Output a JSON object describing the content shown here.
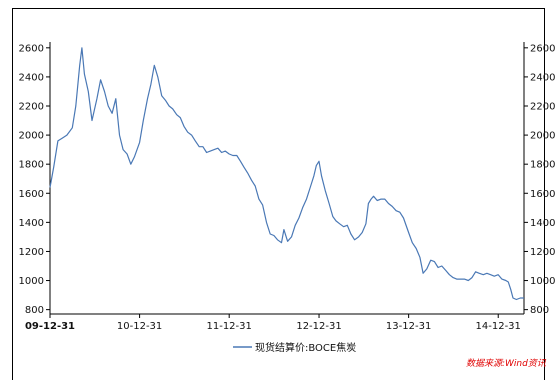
{
  "chart_data": {
    "type": "line",
    "series": [
      {
        "name": "现货结算价:BOCE焦炭",
        "color": "#4a78b5",
        "points": [
          [
            "2009-12-31",
            1640
          ],
          [
            "2010-01-15",
            1780
          ],
          [
            "2010-02-01",
            1960
          ],
          [
            "2010-02-20",
            1980
          ],
          [
            "2010-03-10",
            2000
          ],
          [
            "2010-04-01",
            2050
          ],
          [
            "2010-04-15",
            2200
          ],
          [
            "2010-05-01",
            2480
          ],
          [
            "2010-05-10",
            2600
          ],
          [
            "2010-05-20",
            2420
          ],
          [
            "2010-06-05",
            2300
          ],
          [
            "2010-06-20",
            2100
          ],
          [
            "2010-07-10",
            2250
          ],
          [
            "2010-07-25",
            2380
          ],
          [
            "2010-08-10",
            2300
          ],
          [
            "2010-08-25",
            2200
          ],
          [
            "2010-09-10",
            2150
          ],
          [
            "2010-09-25",
            2250
          ],
          [
            "2010-10-10",
            2000
          ],
          [
            "2010-10-25",
            1900
          ],
          [
            "2010-11-10",
            1870
          ],
          [
            "2010-11-25",
            1800
          ],
          [
            "2010-12-10",
            1850
          ],
          [
            "2010-12-31",
            1950
          ],
          [
            "2011-01-15",
            2100
          ],
          [
            "2011-02-01",
            2250
          ],
          [
            "2011-02-15",
            2350
          ],
          [
            "2011-03-01",
            2480
          ],
          [
            "2011-03-15",
            2400
          ],
          [
            "2011-03-31",
            2270
          ],
          [
            "2011-04-15",
            2240
          ],
          [
            "2011-04-30",
            2200
          ],
          [
            "2011-05-15",
            2180
          ],
          [
            "2011-05-31",
            2140
          ],
          [
            "2011-06-15",
            2120
          ],
          [
            "2011-06-30",
            2060
          ],
          [
            "2011-07-15",
            2020
          ],
          [
            "2011-07-31",
            2000
          ],
          [
            "2011-08-15",
            1960
          ],
          [
            "2011-08-31",
            1920
          ],
          [
            "2011-09-15",
            1920
          ],
          [
            "2011-09-30",
            1880
          ],
          [
            "2011-10-15",
            1890
          ],
          [
            "2011-10-31",
            1900
          ],
          [
            "2011-11-15",
            1910
          ],
          [
            "2011-11-30",
            1880
          ],
          [
            "2011-12-15",
            1890
          ],
          [
            "2011-12-31",
            1870
          ],
          [
            "2012-01-15",
            1860
          ],
          [
            "2012-01-31",
            1860
          ],
          [
            "2012-02-15",
            1820
          ],
          [
            "2012-02-29",
            1780
          ],
          [
            "2012-03-15",
            1740
          ],
          [
            "2012-03-31",
            1690
          ],
          [
            "2012-04-15",
            1650
          ],
          [
            "2012-04-30",
            1560
          ],
          [
            "2012-05-15",
            1520
          ],
          [
            "2012-05-31",
            1400
          ],
          [
            "2012-06-15",
            1320
          ],
          [
            "2012-06-30",
            1310
          ],
          [
            "2012-07-15",
            1280
          ],
          [
            "2012-07-31",
            1260
          ],
          [
            "2012-08-10",
            1350
          ],
          [
            "2012-08-25",
            1270
          ],
          [
            "2012-09-10",
            1300
          ],
          [
            "2012-09-25",
            1380
          ],
          [
            "2012-10-10",
            1430
          ],
          [
            "2012-10-25",
            1500
          ],
          [
            "2012-11-10",
            1560
          ],
          [
            "2012-11-25",
            1640
          ],
          [
            "2012-12-10",
            1720
          ],
          [
            "2012-12-20",
            1790
          ],
          [
            "2012-12-31",
            1820
          ],
          [
            "2013-01-10",
            1720
          ],
          [
            "2013-01-25",
            1620
          ],
          [
            "2013-02-10",
            1530
          ],
          [
            "2013-02-25",
            1440
          ],
          [
            "2013-03-10",
            1410
          ],
          [
            "2013-03-25",
            1390
          ],
          [
            "2013-04-10",
            1370
          ],
          [
            "2013-04-25",
            1380
          ],
          [
            "2013-05-10",
            1320
          ],
          [
            "2013-05-25",
            1280
          ],
          [
            "2013-06-10",
            1300
          ],
          [
            "2013-06-25",
            1330
          ],
          [
            "2013-07-10",
            1390
          ],
          [
            "2013-07-20",
            1530
          ],
          [
            "2013-07-31",
            1560
          ],
          [
            "2013-08-10",
            1580
          ],
          [
            "2013-08-25",
            1550
          ],
          [
            "2013-09-10",
            1560
          ],
          [
            "2013-09-25",
            1560
          ],
          [
            "2013-10-10",
            1530
          ],
          [
            "2013-10-25",
            1510
          ],
          [
            "2013-11-10",
            1480
          ],
          [
            "2013-11-25",
            1470
          ],
          [
            "2013-12-10",
            1430
          ],
          [
            "2013-12-31",
            1330
          ],
          [
            "2014-01-15",
            1260
          ],
          [
            "2014-01-31",
            1220
          ],
          [
            "2014-02-15",
            1160
          ],
          [
            "2014-02-28",
            1050
          ],
          [
            "2014-03-15",
            1080
          ],
          [
            "2014-03-31",
            1140
          ],
          [
            "2014-04-15",
            1130
          ],
          [
            "2014-04-30",
            1090
          ],
          [
            "2014-05-15",
            1100
          ],
          [
            "2014-05-31",
            1070
          ],
          [
            "2014-06-15",
            1040
          ],
          [
            "2014-06-30",
            1020
          ],
          [
            "2014-07-15",
            1010
          ],
          [
            "2014-07-31",
            1010
          ],
          [
            "2014-08-15",
            1010
          ],
          [
            "2014-08-31",
            1000
          ],
          [
            "2014-09-15",
            1020
          ],
          [
            "2014-09-30",
            1060
          ],
          [
            "2014-10-15",
            1050
          ],
          [
            "2014-10-31",
            1040
          ],
          [
            "2014-11-15",
            1050
          ],
          [
            "2014-11-30",
            1040
          ],
          [
            "2014-12-15",
            1030
          ],
          [
            "2014-12-31",
            1040
          ],
          [
            "2015-01-15",
            1010
          ],
          [
            "2015-01-31",
            1000
          ],
          [
            "2015-02-10",
            990
          ],
          [
            "2015-02-20",
            940
          ],
          [
            "2015-03-01",
            880
          ],
          [
            "2015-03-15",
            870
          ],
          [
            "2015-03-31",
            880
          ],
          [
            "2015-04-15",
            880
          ]
        ]
      }
    ],
    "x_ticks": [
      "09-12-31",
      "10-12-31",
      "11-12-31",
      "12-12-31",
      "13-12-31",
      "14-12-31"
    ],
    "x_tick_dates": [
      "2009-12-31",
      "2010-12-31",
      "2011-12-31",
      "2012-12-31",
      "2013-12-31",
      "2014-12-31"
    ],
    "x_range": [
      "2009-12-31",
      "2015-04-15"
    ],
    "y_ticks": [
      800,
      1000,
      1200,
      1400,
      1600,
      1800,
      2000,
      2200,
      2400,
      2600
    ],
    "ylim": [
      770,
      2640
    ],
    "grid": false,
    "dual_y_axis_mirrored": true,
    "legend_position": "bottom-center"
  },
  "legend": {
    "label": "现货结算价:BOCE焦炭"
  },
  "source": {
    "text": "数据来源:Wind资讯"
  }
}
